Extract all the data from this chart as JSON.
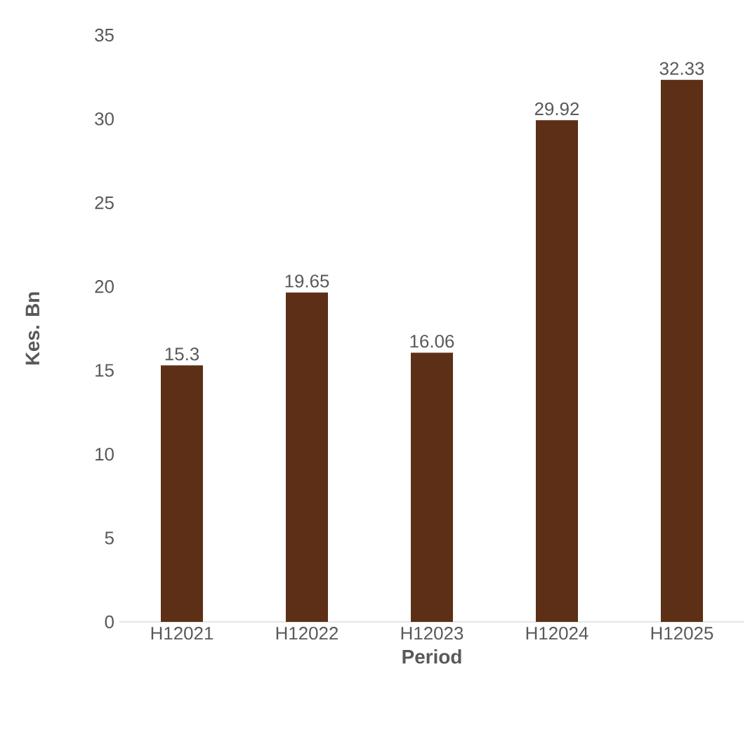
{
  "chart_data": {
    "type": "bar",
    "xlabel": "Period",
    "ylabel": "Kes. Bn",
    "categories": [
      "H12021",
      "H12022",
      "H12023",
      "H12024",
      "H12025"
    ],
    "values": [
      15.3,
      19.65,
      16.06,
      29.92,
      32.33
    ],
    "color": "#5c2f16",
    "ylim": [
      0,
      35
    ],
    "yticks": [
      0,
      5,
      10,
      15,
      20,
      25,
      30,
      35
    ],
    "data_labels": true
  }
}
